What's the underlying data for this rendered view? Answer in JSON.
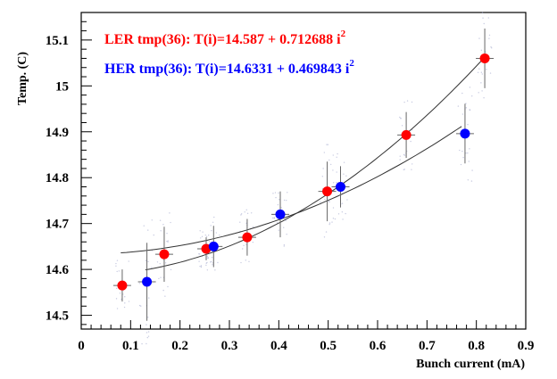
{
  "chart_data": {
    "type": "scatter",
    "xlabel": "Bunch current (mA)",
    "ylabel": "Temp. (C)",
    "xlim": [
      0,
      0.9
    ],
    "ylim": [
      14.47,
      15.16
    ],
    "x_ticks": [
      "0",
      "0.1",
      "0.2",
      "0.3",
      "0.4",
      "0.5",
      "0.6",
      "0.7",
      "0.8",
      "0.9"
    ],
    "y_ticks": [
      "14.5",
      "14.6",
      "14.7",
      "14.8",
      "14.9",
      "15",
      "15.1"
    ],
    "legend_position": "top-left",
    "series": [
      {
        "name": "LER tmp(36): T(i)=14.587 + 0.712688 i",
        "name_superscript": "2",
        "color": "#ff0000",
        "fit": {
          "a": 14.587,
          "b": 0.712688,
          "x_range": [
            0.13,
            0.82
          ]
        },
        "points": [
          {
            "x": 0.083,
            "y": 14.565,
            "yerr": 0.035
          },
          {
            "x": 0.168,
            "y": 14.633,
            "yerr": 0.06
          },
          {
            "x": 0.253,
            "y": 14.645,
            "yerr": 0.025
          },
          {
            "x": 0.336,
            "y": 14.67,
            "yerr": 0.04
          },
          {
            "x": 0.498,
            "y": 14.77,
            "yerr": 0.065
          },
          {
            "x": 0.658,
            "y": 14.893,
            "yerr": 0.05
          },
          {
            "x": 0.817,
            "y": 15.06,
            "yerr": 0.065
          }
        ]
      },
      {
        "name": "HER tmp(36): T(i)=14.6331 + 0.469843 i",
        "name_superscript": "2",
        "color": "#0000ff",
        "fit": {
          "a": 14.6331,
          "b": 0.469843,
          "x_range": [
            0.08,
            0.77
          ]
        },
        "points": [
          {
            "x": 0.133,
            "y": 14.573,
            "yerr": 0.085
          },
          {
            "x": 0.268,
            "y": 14.65,
            "yerr": 0.045
          },
          {
            "x": 0.403,
            "y": 14.72,
            "yerr": 0.05
          },
          {
            "x": 0.525,
            "y": 14.78,
            "yerr": 0.045
          },
          {
            "x": 0.777,
            "y": 14.896,
            "yerr": 0.065
          }
        ]
      }
    ]
  }
}
